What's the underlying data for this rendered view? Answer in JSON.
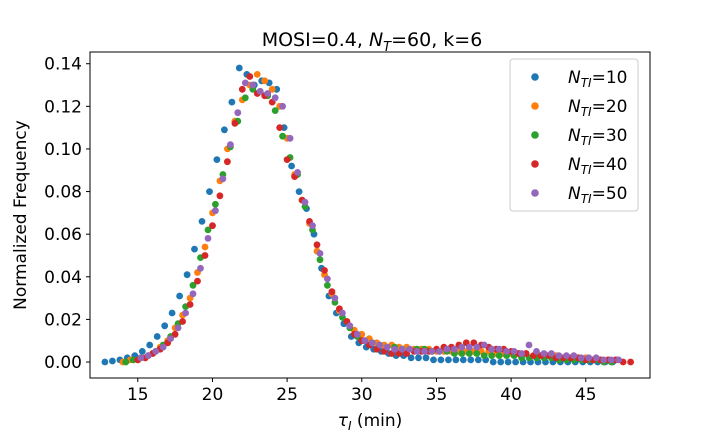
{
  "chart_data": {
    "type": "scatter",
    "title": "MOSI=0.4, N_T=60, k=6",
    "title_parts": {
      "prefix": "MOSI=0.4, ",
      "var": "N",
      "sub": "T",
      "suffix": "=60, k=6"
    },
    "xlabel": "τ_I (min)",
    "xlabel_parts": {
      "var": "τ",
      "sub": "I",
      "suffix": " (min)"
    },
    "ylabel": "Normalized Frequency",
    "xlim": [
      11.8,
      49.3
    ],
    "ylim": [
      -0.0075,
      0.1455
    ],
    "xticks": [
      15,
      20,
      25,
      30,
      35,
      40,
      45
    ],
    "yticks": [
      0.0,
      0.02,
      0.04,
      0.06,
      0.08,
      0.1,
      0.12,
      0.14
    ],
    "ytick_labels": [
      "0.00",
      "0.02",
      "0.04",
      "0.06",
      "0.08",
      "0.10",
      "0.12",
      "0.14"
    ],
    "grid": false,
    "legend_position": "top-right",
    "series": [
      {
        "name": "N_TI=10",
        "legend": {
          "var": "N",
          "sub": "TI",
          "suffix": "=10"
        },
        "color": "#1f77b4",
        "x": [
          12.8,
          13.3,
          13.8,
          14.3,
          14.8,
          15.3,
          15.8,
          16.3,
          16.8,
          17.3,
          17.8,
          18.3,
          18.8,
          19.3,
          19.8,
          20.3,
          20.8,
          21.3,
          21.8,
          22.3,
          22.8,
          23.3,
          23.8,
          24.3,
          24.8,
          25.3,
          25.8,
          26.3,
          26.8,
          27.3,
          27.8,
          28.3,
          28.8,
          29.3,
          29.8,
          30.3,
          30.8,
          31.3,
          31.8,
          32.3,
          32.8,
          33.3,
          33.8,
          34.3,
          34.8,
          35.3,
          35.8,
          36.3,
          36.8,
          37.3,
          37.8,
          38.3,
          38.8,
          39.3,
          39.8,
          40.3,
          40.8,
          41.3,
          41.8,
          42.3,
          42.8,
          43.3,
          43.8,
          44.3,
          44.8,
          45.3,
          45.8,
          46.3,
          46.8
        ],
        "y": [
          0.0,
          0.0005,
          0.001,
          0.002,
          0.003,
          0.005,
          0.008,
          0.012,
          0.017,
          0.023,
          0.031,
          0.041,
          0.053,
          0.066,
          0.08,
          0.095,
          0.109,
          0.122,
          0.138,
          0.135,
          0.13,
          0.132,
          0.131,
          0.128,
          0.11,
          0.092,
          0.08,
          0.072,
          0.06,
          0.044,
          0.031,
          0.023,
          0.018,
          0.012,
          0.009,
          0.007,
          0.006,
          0.005,
          0.004,
          0.003,
          0.003,
          0.002,
          0.002,
          0.002,
          0.001,
          0.001,
          0.001,
          0.001,
          0.001,
          0.001,
          0.001,
          0.001,
          0.0,
          0.0,
          0.0,
          0.0,
          0.0,
          0.0,
          0.0,
          0.0,
          0.0,
          0.0,
          0.0,
          0.0,
          0.0,
          0.0,
          0.0,
          0.0,
          0.0
        ]
      },
      {
        "name": "N_TI=20",
        "legend": {
          "var": "N",
          "sub": "TI",
          "suffix": "=20"
        },
        "color": "#ff7f0e",
        "x": [
          14.0,
          14.5,
          15.0,
          15.5,
          16.0,
          16.5,
          17.0,
          17.5,
          18.0,
          18.5,
          19.0,
          19.5,
          20.0,
          20.5,
          21.0,
          21.5,
          22.0,
          22.5,
          23.0,
          23.5,
          24.0,
          24.5,
          25.0,
          25.5,
          26.0,
          26.5,
          27.0,
          27.5,
          28.0,
          28.5,
          29.0,
          29.5,
          30.0,
          30.5,
          31.0,
          31.5,
          32.0,
          32.5,
          33.0,
          33.5,
          34.0,
          34.5,
          35.0,
          35.5,
          36.0,
          36.5,
          37.0,
          37.5,
          38.0,
          38.5,
          39.0,
          39.5,
          40.0,
          40.5,
          41.0,
          41.5,
          42.0,
          42.5,
          43.0,
          43.5,
          44.0,
          44.5,
          45.0,
          45.5,
          46.0,
          46.5,
          47.0
        ],
        "y": [
          0.0,
          0.001,
          0.001,
          0.002,
          0.004,
          0.007,
          0.01,
          0.016,
          0.022,
          0.03,
          0.042,
          0.054,
          0.07,
          0.085,
          0.1,
          0.113,
          0.123,
          0.13,
          0.135,
          0.132,
          0.128,
          0.12,
          0.105,
          0.088,
          0.076,
          0.065,
          0.052,
          0.041,
          0.032,
          0.024,
          0.019,
          0.015,
          0.013,
          0.011,
          0.009,
          0.008,
          0.008,
          0.007,
          0.007,
          0.006,
          0.006,
          0.006,
          0.005,
          0.005,
          0.005,
          0.005,
          0.005,
          0.005,
          0.005,
          0.005,
          0.004,
          0.004,
          0.004,
          0.004,
          0.004,
          0.003,
          0.003,
          0.003,
          0.003,
          0.002,
          0.002,
          0.002,
          0.002,
          0.001,
          0.001,
          0.001,
          0.001
        ]
      },
      {
        "name": "N_TI=30",
        "legend": {
          "var": "N",
          "sub": "TI",
          "suffix": "=30"
        },
        "color": "#2ca02c",
        "x": [
          14.2,
          14.7,
          15.2,
          15.7,
          16.2,
          16.7,
          17.2,
          17.7,
          18.2,
          18.7,
          19.2,
          19.7,
          20.2,
          20.7,
          21.2,
          21.7,
          22.2,
          22.7,
          23.2,
          23.7,
          24.2,
          24.7,
          25.2,
          25.7,
          26.2,
          26.7,
          27.2,
          27.7,
          28.2,
          28.7,
          29.2,
          29.7,
          30.2,
          30.7,
          31.2,
          31.7,
          32.2,
          32.7,
          33.2,
          33.7,
          34.2,
          34.7,
          35.2,
          35.7,
          36.2,
          36.7,
          37.2,
          37.7,
          38.2,
          38.7,
          39.2,
          39.7,
          40.2,
          40.7,
          41.2,
          41.7,
          42.2,
          42.7,
          43.2,
          43.7,
          44.2,
          44.7,
          45.2,
          45.7,
          46.2,
          46.7
        ],
        "y": [
          0.0,
          0.001,
          0.002,
          0.003,
          0.005,
          0.008,
          0.012,
          0.018,
          0.026,
          0.036,
          0.049,
          0.062,
          0.074,
          0.088,
          0.101,
          0.113,
          0.124,
          0.128,
          0.127,
          0.125,
          0.118,
          0.106,
          0.096,
          0.088,
          0.073,
          0.062,
          0.048,
          0.036,
          0.028,
          0.021,
          0.016,
          0.012,
          0.01,
          0.009,
          0.008,
          0.007,
          0.007,
          0.006,
          0.006,
          0.006,
          0.006,
          0.005,
          0.005,
          0.005,
          0.004,
          0.004,
          0.004,
          0.004,
          0.003,
          0.003,
          0.003,
          0.003,
          0.003,
          0.002,
          0.002,
          0.002,
          0.002,
          0.002,
          0.001,
          0.001,
          0.001,
          0.001,
          0.001,
          0.001,
          0.0,
          0.0
        ]
      },
      {
        "name": "N_TI=40",
        "legend": {
          "var": "N",
          "sub": "TI",
          "suffix": "=40"
        },
        "color": "#d62728",
        "x": [
          15.0,
          15.5,
          16.0,
          16.5,
          17.0,
          17.5,
          18.0,
          18.5,
          19.0,
          19.5,
          20.0,
          20.5,
          21.0,
          21.5,
          22.0,
          22.5,
          23.0,
          23.5,
          24.0,
          24.5,
          25.0,
          25.5,
          26.0,
          26.5,
          27.0,
          27.5,
          28.0,
          28.5,
          29.0,
          29.5,
          30.0,
          30.5,
          31.0,
          31.5,
          32.0,
          32.5,
          33.0,
          33.5,
          34.0,
          34.5,
          35.0,
          35.5,
          36.0,
          36.5,
          37.0,
          37.5,
          38.0,
          38.5,
          39.0,
          39.5,
          40.0,
          40.5,
          41.0,
          41.5,
          42.0,
          42.5,
          43.0,
          43.5,
          44.0,
          44.5,
          45.0,
          45.5,
          46.0,
          46.5,
          47.0,
          47.5,
          48.0
        ],
        "y": [
          0.001,
          0.002,
          0.004,
          0.006,
          0.009,
          0.013,
          0.019,
          0.027,
          0.038,
          0.05,
          0.064,
          0.078,
          0.094,
          0.112,
          0.128,
          0.134,
          0.126,
          0.125,
          0.122,
          0.11,
          0.095,
          0.087,
          0.076,
          0.066,
          0.055,
          0.043,
          0.033,
          0.025,
          0.019,
          0.013,
          0.01,
          0.008,
          0.006,
          0.005,
          0.004,
          0.004,
          0.004,
          0.005,
          0.005,
          0.005,
          0.006,
          0.007,
          0.007,
          0.008,
          0.009,
          0.009,
          0.008,
          0.007,
          0.006,
          0.006,
          0.005,
          0.004,
          0.004,
          0.003,
          0.003,
          0.003,
          0.002,
          0.002,
          0.002,
          0.002,
          0.001,
          0.001,
          0.001,
          0.001,
          0.001,
          0.0,
          0.0
        ]
      },
      {
        "name": "N_TI=50",
        "legend": {
          "var": "N",
          "sub": "TI",
          "suffix": "=50"
        },
        "color": "#9467bd",
        "x": [
          15.2,
          15.7,
          16.2,
          16.7,
          17.2,
          17.7,
          18.2,
          18.7,
          19.2,
          19.7,
          20.2,
          20.7,
          21.2,
          21.7,
          22.2,
          22.7,
          23.2,
          23.7,
          24.2,
          24.7,
          25.2,
          25.7,
          26.2,
          26.7,
          27.2,
          27.7,
          28.2,
          28.7,
          29.2,
          29.7,
          30.2,
          30.7,
          31.2,
          31.7,
          32.2,
          32.7,
          33.2,
          33.7,
          34.2,
          34.7,
          35.2,
          35.7,
          36.2,
          36.7,
          37.2,
          37.7,
          38.2,
          38.7,
          39.2,
          39.7,
          40.2,
          40.7,
          41.2,
          41.7,
          42.2,
          42.7,
          43.2,
          43.7,
          44.2,
          44.7,
          45.2,
          45.7,
          46.2,
          46.7,
          47.2
        ],
        "y": [
          0.002,
          0.003,
          0.005,
          0.007,
          0.011,
          0.016,
          0.023,
          0.032,
          0.044,
          0.058,
          0.071,
          0.086,
          0.102,
          0.117,
          0.131,
          0.13,
          0.127,
          0.126,
          0.124,
          0.12,
          0.105,
          0.089,
          0.075,
          0.064,
          0.051,
          0.039,
          0.03,
          0.023,
          0.017,
          0.013,
          0.01,
          0.009,
          0.008,
          0.007,
          0.006,
          0.006,
          0.006,
          0.005,
          0.005,
          0.005,
          0.005,
          0.006,
          0.006,
          0.007,
          0.007,
          0.007,
          0.008,
          0.006,
          0.006,
          0.005,
          0.005,
          0.004,
          0.008,
          0.005,
          0.004,
          0.004,
          0.003,
          0.003,
          0.003,
          0.002,
          0.002,
          0.002,
          0.001,
          0.001,
          0.001
        ]
      }
    ]
  }
}
